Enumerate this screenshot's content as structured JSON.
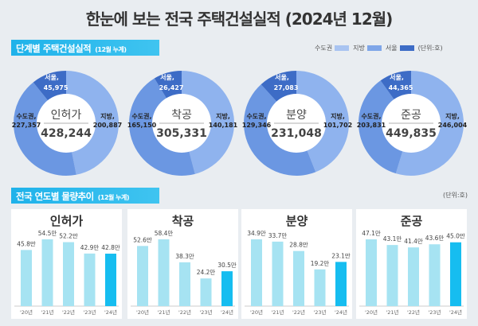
{
  "title": "한눈에 보는 전국 주택건설실적 (2024년 12월)",
  "section1": {
    "label": "단계별 주택건설실적",
    "sub": "(12월 누계)"
  },
  "section2": {
    "label": "전국 연도별 물량추이",
    "sub": "(12월 누계)"
  },
  "legend": {
    "items": [
      "수도권",
      "지방",
      "서울"
    ],
    "unit": "(단위:호)"
  },
  "unit2": "(단위:호)",
  "colors": {
    "jibang": "#8fb3ee",
    "sudo": "#6b97e2",
    "seoul": "#3d6cc6",
    "bar": "#a6e3f2",
    "bar_current": "#16bdf0"
  },
  "chart_data": [
    {
      "type": "pie",
      "title": "인허가",
      "total": "428,244",
      "slices": [
        {
          "name": "지방",
          "value": 200887,
          "label": "200,887"
        },
        {
          "name": "수도권",
          "value": 227357,
          "label": "227,357"
        },
        {
          "name": "서울",
          "value": 45975,
          "label": "45,975"
        }
      ]
    },
    {
      "type": "pie",
      "title": "착공",
      "total": "305,331",
      "slices": [
        {
          "name": "지방",
          "value": 140181,
          "label": "140,181"
        },
        {
          "name": "수도권",
          "value": 165150,
          "label": "165,150"
        },
        {
          "name": "서울",
          "value": 26427,
          "label": "26,427"
        }
      ]
    },
    {
      "type": "pie",
      "title": "분양",
      "total": "231,048",
      "slices": [
        {
          "name": "지방",
          "value": 101702,
          "label": "101,702"
        },
        {
          "name": "수도권",
          "value": 129346,
          "label": "129,346"
        },
        {
          "name": "서울",
          "value": 27083,
          "label": "27,083"
        }
      ]
    },
    {
      "type": "pie",
      "title": "준공",
      "total": "449,835",
      "slices": [
        {
          "name": "지방",
          "value": 246004,
          "label": "246,004"
        },
        {
          "name": "수도권",
          "value": 203831,
          "label": "203,831"
        },
        {
          "name": "서울",
          "value": 44365,
          "label": "44,365"
        }
      ]
    },
    {
      "type": "bar",
      "title": "인허가",
      "categories": [
        "'20년",
        "'21년",
        "'22년",
        "'23년",
        "'24년"
      ],
      "values": [
        45.8,
        54.5,
        52.2,
        42.9,
        42.8
      ],
      "labels": [
        "45.8만",
        "54.5만",
        "52.2만",
        "42.9만",
        "42.8만"
      ]
    },
    {
      "type": "bar",
      "title": "착공",
      "categories": [
        "'20년",
        "'21년",
        "'22년",
        "'23년",
        "'24년"
      ],
      "values": [
        52.6,
        58.4,
        38.3,
        24.2,
        30.5
      ],
      "labels": [
        "52.6만",
        "58.4만",
        "38.3만",
        "24.2만",
        "30.5만"
      ]
    },
    {
      "type": "bar",
      "title": "분양",
      "categories": [
        "'20년",
        "'21년",
        "'22년",
        "'23년",
        "'24년"
      ],
      "values": [
        34.9,
        33.7,
        28.8,
        19.2,
        23.1
      ],
      "labels": [
        "34.9만",
        "33.7만",
        "28.8만",
        "19.2만",
        "23.1만"
      ]
    },
    {
      "type": "bar",
      "title": "준공",
      "categories": [
        "'20년",
        "'21년",
        "'22년",
        "'23년",
        "'24년"
      ],
      "values": [
        47.1,
        43.1,
        41.4,
        43.6,
        45.0
      ],
      "labels": [
        "47.1만",
        "43.1만",
        "41.4만",
        "43.6만",
        "45.0만"
      ]
    }
  ]
}
